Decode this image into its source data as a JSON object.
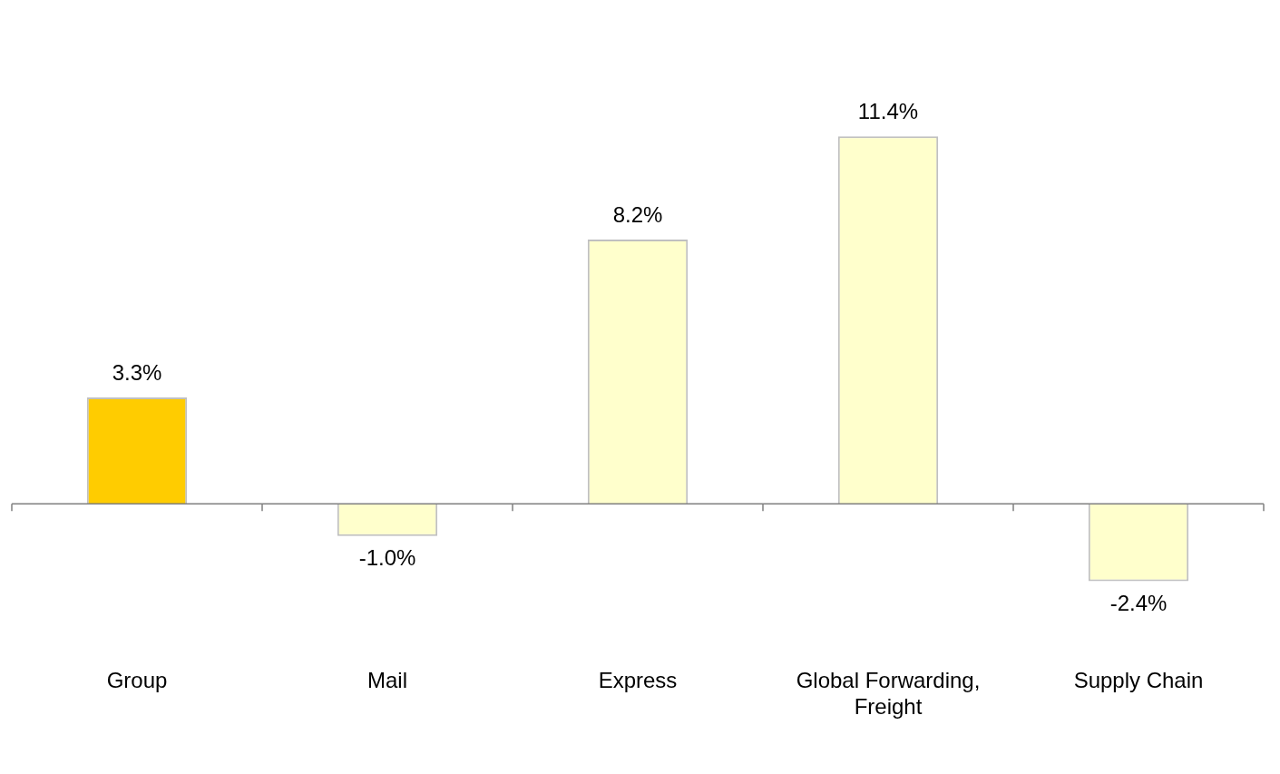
{
  "chart_data": {
    "type": "bar",
    "categories": [
      "Group",
      "Mail",
      "Express",
      "Global Forwarding, Freight",
      "Supply Chain"
    ],
    "values": [
      3.3,
      -1.0,
      8.2,
      11.4,
      -2.4
    ],
    "colors": [
      "#ffcc00",
      "#ffffcc",
      "#ffffcc",
      "#ffffcc",
      "#ffffcc"
    ],
    "value_labels": [
      "3.3%",
      "-1.0%",
      "8.2%",
      "11.4%",
      "-2.4%"
    ],
    "grid": false,
    "legend": false
  }
}
